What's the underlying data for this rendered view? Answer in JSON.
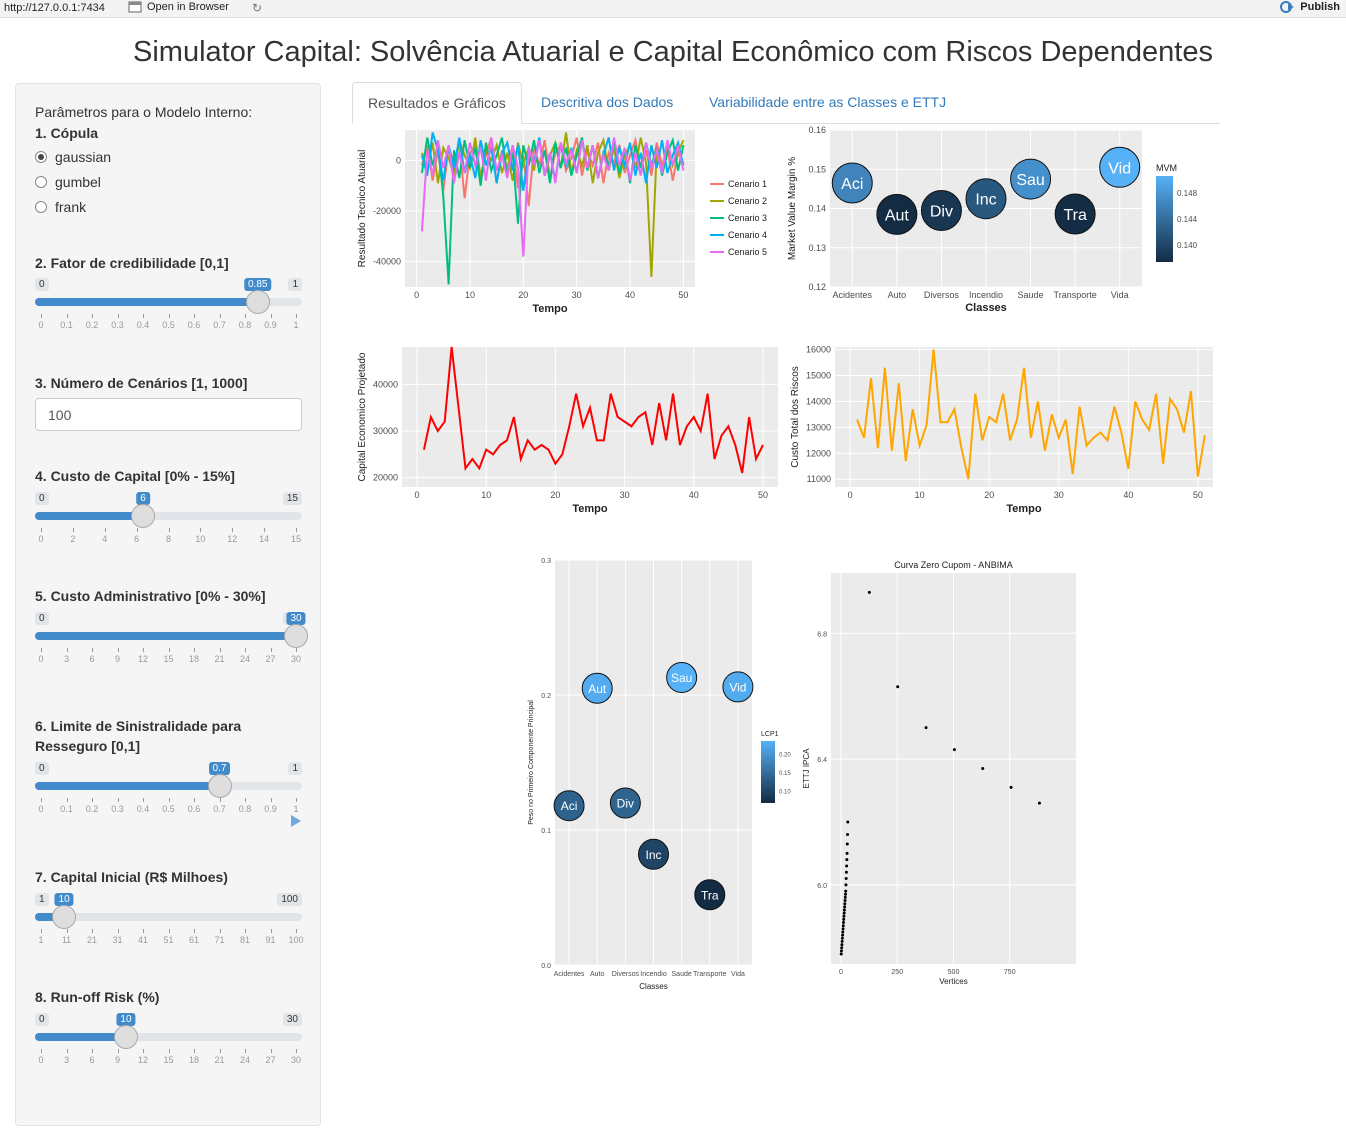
{
  "browser": {
    "url": "http://127.0.0.1:7434",
    "open_label": "Open in Browser",
    "publish_label": "Publish"
  },
  "title": "Simulator Capital: Solvência Atuarial e Capital Econômico com Riscos Dependentes",
  "sidebar": {
    "intro": "Parâmetros para o Modelo Interno:",
    "copula": {
      "label": "1. Cópula",
      "options": [
        "gaussian",
        "gumbel",
        "frank"
      ],
      "selected": "gaussian"
    },
    "sliders": [
      {
        "label": "2. Fator de credibilidade [0,1]",
        "min": "0",
        "max": "1",
        "value": "0.85",
        "fraction": 0.85,
        "ticks": [
          "0",
          "0.1",
          "0.2",
          "0.3",
          "0.4",
          "0.5",
          "0.6",
          "0.7",
          "0.8",
          "0.9",
          "1"
        ]
      },
      {
        "label": "4. Custo de Capital [0% - 15%]",
        "min": "0",
        "max": "15",
        "value": "6",
        "fraction": 0.4,
        "ticks": [
          "0",
          "2",
          "4",
          "6",
          "8",
          "10",
          "12",
          "14",
          "15"
        ]
      },
      {
        "label": "5. Custo Administrativo [0% - 30%]",
        "min": "0",
        "max": "30",
        "value": "30",
        "fraction": 1.0,
        "ticks": [
          "0",
          "3",
          "6",
          "9",
          "12",
          "15",
          "18",
          "21",
          "24",
          "27",
          "30"
        ]
      },
      {
        "label": "6. Limite de Sinistralidade para Resseguro [0,1]",
        "min": "0",
        "max": "1",
        "value": "0.7",
        "fraction": 0.7,
        "ticks": [
          "0",
          "0.1",
          "0.2",
          "0.3",
          "0.4",
          "0.5",
          "0.6",
          "0.7",
          "0.8",
          "0.9",
          "1"
        ]
      },
      {
        "label": "7. Capital Inicial (R$ Milhoes)",
        "min": "1",
        "max": "100",
        "value": "10",
        "fraction": 0.0909,
        "ticks": [
          "1",
          "11",
          "21",
          "31",
          "41",
          "51",
          "61",
          "71",
          "81",
          "91",
          "100"
        ]
      },
      {
        "label": "8. Run-off Risk (%)",
        "min": "0",
        "max": "30",
        "value": "10",
        "fraction": 0.3333,
        "ticks": [
          "0",
          "3",
          "6",
          "9",
          "12",
          "15",
          "18",
          "21",
          "24",
          "27",
          "30"
        ]
      }
    ],
    "cenarios": {
      "label": "3. Número de Cenários [1, 1000]",
      "value": "100"
    }
  },
  "tabs": [
    "Resultados e Gráficos",
    "Descritiva dos Dados",
    "Variabilidade entre as Classes e ETTJ"
  ],
  "icons": {
    "open": "open-browser-icon",
    "refresh": "refresh-icon",
    "publish": "publish-icon",
    "play": "play-icon"
  },
  "chart_data": [
    {
      "type": "line",
      "xlabel": "Tempo",
      "ylabel": "Resultado Tecnico Atuarial",
      "xlim": [
        0,
        50
      ],
      "ylim": [
        -50000,
        12000
      ],
      "x_ticks": [
        "0",
        "10",
        "20",
        "30",
        "40",
        "50"
      ],
      "y_ticks": [
        "0",
        "-20000",
        "-40000"
      ],
      "series": [
        {
          "name": "Cenario 1",
          "color": "#F8766D",
          "values": [
            -2000,
            6000,
            -8000,
            4000,
            -12000,
            5000,
            -1000,
            7000,
            -15000,
            3000,
            6000,
            -6000,
            2000,
            9000,
            -9000,
            4000,
            -3000,
            6000,
            -11000,
            2000,
            -18000,
            5000,
            -2000,
            8000,
            -7000,
            3000,
            6000,
            -4000,
            1000,
            9000,
            -6000,
            4000,
            -2000,
            7000,
            -9000,
            3000,
            -1000,
            6000,
            -5000,
            2000,
            8000,
            -3000,
            4000,
            -6000,
            7000,
            -2000,
            5000,
            -8000,
            3000,
            -1000
          ]
        },
        {
          "name": "Cenario 2",
          "color": "#A3A500",
          "values": [
            3000,
            -4000,
            7000,
            -9000,
            5000,
            1000,
            -6000,
            8000,
            2000,
            -3000,
            9000,
            -7000,
            4000,
            0,
            6000,
            -5000,
            3000,
            -8000,
            7000,
            -2000,
            5000,
            -4000,
            9000,
            -6000,
            2000,
            7000,
            -3000,
            11000,
            -5000,
            4000,
            -2000,
            6000,
            -9000,
            3000,
            8000,
            -4000,
            5000,
            -7000,
            2000,
            6000,
            -3000,
            9000,
            -1000,
            -46000,
            4000,
            -5000,
            7000,
            -2000,
            3000,
            8000
          ]
        },
        {
          "name": "Cenario 3",
          "color": "#00BF7D",
          "values": [
            -5000,
            9000,
            -2000,
            6000,
            -14000,
            -49000,
            4000,
            -7000,
            8000,
            -3000,
            5000,
            -10000,
            7000,
            -4000,
            2000,
            9000,
            -6000,
            3000,
            -25000,
            6000,
            -2000,
            8000,
            -5000,
            4000,
            -9000,
            7000,
            -3000,
            5000,
            -6000,
            2000,
            9000,
            -4000,
            6000,
            -7000,
            3000,
            -2000,
            8000,
            -5000,
            4000,
            -9000,
            6000,
            -3000,
            7000,
            -2000,
            5000,
            -6000,
            3000,
            8000,
            -4000,
            6000
          ]
        },
        {
          "name": "Cenario 4",
          "color": "#00B0F6",
          "values": [
            2000,
            -6000,
            11000,
            4000,
            -8000,
            6000,
            -3000,
            9000,
            -5000,
            2000,
            -7000,
            8000,
            -2000,
            5000,
            -9000,
            3000,
            7000,
            -4000,
            6000,
            -12000,
            4000,
            -1000,
            9000,
            -6000,
            3000,
            -8000,
            7000,
            -2000,
            5000,
            -5000,
            8000,
            -3000,
            6000,
            -7000,
            2000,
            9000,
            -4000,
            5000,
            -2000,
            7000,
            -6000,
            3000,
            -9000,
            6000,
            -3000,
            8000,
            -5000,
            2000,
            7000,
            -2000
          ]
        },
        {
          "name": "Cenario 5",
          "color": "#E76BF3",
          "values": [
            -28000,
            4000,
            -6000,
            8000,
            -3000,
            6000,
            -9000,
            3000,
            -5000,
            7000,
            -2000,
            5000,
            -8000,
            9000,
            -4000,
            2000,
            -7000,
            6000,
            -3000,
            -38000,
            5000,
            -2000,
            8000,
            -6000,
            3000,
            -9000,
            7000,
            -1000,
            4000,
            -5000,
            8000,
            -3000,
            6000,
            -7000,
            2000,
            -4000,
            9000,
            -2000,
            5000,
            -8000,
            3000,
            -6000,
            7000,
            -3000,
            4000,
            -5000,
            8000,
            -2000,
            6000,
            -4000
          ]
        }
      ]
    },
    {
      "type": "scatter",
      "xlabel": "Classes",
      "ylabel": "Market Value Margin %",
      "ylim": [
        0.12,
        0.16
      ],
      "categories": [
        "Acidentes",
        "Auto",
        "Diversos",
        "Incendio",
        "Saude",
        "Transporte",
        "Vida"
      ],
      "y_ticks": [
        "0.16",
        "0.15",
        "0.14",
        "0.13",
        "0.12"
      ],
      "labels": [
        "Aci",
        "Aut",
        "Div",
        "Inc",
        "Sau",
        "Tra",
        "Vid"
      ],
      "values": [
        0.1465,
        0.1385,
        0.1395,
        0.1425,
        0.1475,
        0.1386,
        0.1505
      ],
      "legend": {
        "title": "MVM",
        "ticks": [
          "0.148",
          "0.144",
          "0.140"
        ]
      }
    },
    {
      "type": "line",
      "xlabel": "Tempo",
      "ylabel": "Capital Economico Projetado",
      "xlim": [
        0,
        50
      ],
      "ylim": [
        18000,
        48000
      ],
      "color": "#FF0000",
      "x_ticks": [
        "0",
        "10",
        "20",
        "30",
        "40",
        "50"
      ],
      "y_ticks": [
        "40000",
        "30000",
        "20000"
      ],
      "values": [
        26000,
        33000,
        30000,
        32000,
        48000,
        35000,
        22000,
        24000,
        22000,
        26000,
        25000,
        27000,
        28000,
        33000,
        24000,
        28000,
        26000,
        27000,
        26000,
        23000,
        25000,
        31000,
        38000,
        31000,
        35000,
        28000,
        28000,
        38000,
        33000,
        32000,
        31000,
        33000,
        34000,
        27000,
        36000,
        28000,
        38000,
        27000,
        31000,
        33000,
        30000,
        38000,
        24000,
        29000,
        31000,
        27000,
        21000,
        33000,
        24000,
        27000
      ]
    },
    {
      "type": "line",
      "xlabel": "Tempo",
      "ylabel": "Custo Total dos Riscos",
      "xlim": [
        0,
        50
      ],
      "ylim": [
        10700,
        16100
      ],
      "color": "#FFA500",
      "x_ticks": [
        "0",
        "10",
        "20",
        "30",
        "40",
        "50"
      ],
      "y_ticks": [
        "16000",
        "15000",
        "14000",
        "13000",
        "12000",
        "11000"
      ],
      "values": [
        13300,
        12600,
        14900,
        12200,
        15300,
        12100,
        14700,
        11700,
        13700,
        12300,
        13100,
        16000,
        13200,
        13200,
        13700,
        12200,
        11000,
        14300,
        12500,
        13400,
        13200,
        14300,
        12500,
        13300,
        15300,
        12600,
        14000,
        12100,
        13500,
        12600,
        13300,
        11200,
        13800,
        12300,
        12600,
        12800,
        12500,
        13800,
        12800,
        11400,
        14000,
        13300,
        12900,
        14300,
        11600,
        14100,
        13700,
        12800,
        14400,
        11100,
        12700
      ]
    },
    {
      "type": "scatter",
      "xlabel": "Classes",
      "ylabel": "Peso no Primeiro Componente Principal",
      "ylim": [
        0,
        0.3
      ],
      "categories": [
        "Acidentes",
        "Auto",
        "Diversos",
        "Incendio",
        "Saude",
        "Transporte",
        "Vida"
      ],
      "y_ticks": [
        "0.3",
        "0.2",
        "0.1",
        "0.0"
      ],
      "labels": [
        "Aci",
        "Aut",
        "Div",
        "Inc",
        "Sau",
        "Tra",
        "Vid"
      ],
      "values": [
        0.118,
        0.205,
        0.12,
        0.082,
        0.213,
        0.052,
        0.206
      ],
      "legend": {
        "title": "LCP1",
        "ticks": [
          "0.20",
          "0.15",
          "0.10"
        ]
      }
    },
    {
      "type": "scatter",
      "title": "Curva Zero Cupom - ANBIMA",
      "xlabel": "Vertices",
      "ylabel": "ETTJ IPCA",
      "xlim": [
        0,
        1000
      ],
      "ylim": [
        5.78,
        6.96
      ],
      "x_ticks": [
        "0",
        "250",
        "500",
        "750"
      ],
      "y_ticks": [
        "6.8",
        "6.4",
        "6.0"
      ],
      "x": [
        126,
        252,
        378,
        504,
        630,
        756,
        882,
        1,
        2,
        3,
        4,
        5,
        6,
        7,
        8,
        9,
        10,
        11,
        12,
        13,
        14,
        15,
        16,
        17,
        18,
        19,
        20,
        21,
        22,
        23,
        24,
        25,
        26,
        27,
        28,
        29,
        30
      ],
      "y": [
        6.93,
        6.63,
        6.5,
        6.43,
        6.37,
        6.31,
        6.26,
        5.78,
        5.79,
        5.8,
        5.81,
        5.82,
        5.83,
        5.84,
        5.85,
        5.86,
        5.87,
        5.88,
        5.89,
        5.9,
        5.91,
        5.92,
        5.93,
        5.94,
        5.95,
        5.96,
        5.97,
        5.98,
        6.0,
        6.02,
        6.04,
        6.06,
        6.08,
        6.1,
        6.13,
        6.16,
        6.2
      ]
    }
  ]
}
